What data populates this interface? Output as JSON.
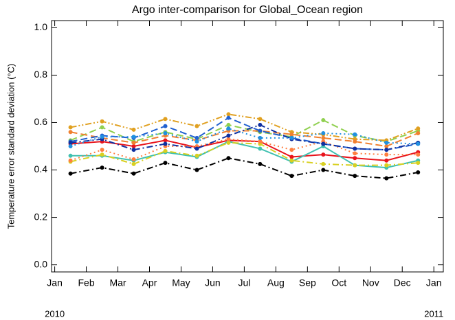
{
  "chart_data": {
    "type": "line",
    "title": "Argo inter-comparison for Global_Ocean region",
    "y_label": "Temperature error standard deviation (°C)",
    "x": [
      0.5,
      1.5,
      2.5,
      3.5,
      4.5,
      5.5,
      6.5,
      7.5,
      8.5,
      9.5,
      10.5,
      11.5
    ],
    "xlim": [
      -0.1,
      12.3
    ],
    "xticks": [
      {
        "value": 0,
        "label": "Jan"
      },
      {
        "value": 1,
        "label": "Feb"
      },
      {
        "value": 2,
        "label": "Mar"
      },
      {
        "value": 3,
        "label": "Apr"
      },
      {
        "value": 4,
        "label": "May"
      },
      {
        "value": 5,
        "label": "Jun"
      },
      {
        "value": 6,
        "label": "Jul"
      },
      {
        "value": 7,
        "label": "Aug"
      },
      {
        "value": 8,
        "label": "Sep"
      },
      {
        "value": 9,
        "label": "Oct"
      },
      {
        "value": 10,
        "label": "Nov"
      },
      {
        "value": 11,
        "label": "Dec"
      },
      {
        "value": 12,
        "label": "Jan"
      }
    ],
    "year_labels": [
      {
        "value": 0,
        "label": "2010"
      },
      {
        "value": 12,
        "label": "2011"
      }
    ],
    "ylim": [
      -0.03,
      1.03
    ],
    "yticks": [
      {
        "value": 0,
        "label": "0.0"
      },
      0.2,
      0.4,
      0.6,
      0.8,
      {
        "value": 1,
        "label": "1.0"
      }
    ],
    "series": [
      {
        "color": "#000000",
        "style": "dashdot",
        "values": [
          0.385,
          0.41,
          0.385,
          0.43,
          0.4,
          0.45,
          0.425,
          0.375,
          0.4,
          0.375,
          0.365,
          0.39
        ]
      },
      {
        "color": "#e8141c",
        "style": "solid",
        "values": [
          0.51,
          0.52,
          0.5,
          0.525,
          0.495,
          0.525,
          0.52,
          0.455,
          0.465,
          0.45,
          0.44,
          0.475
        ]
      },
      {
        "color": "#40c0b0",
        "style": "solid",
        "values": [
          0.46,
          0.46,
          0.44,
          0.475,
          0.455,
          0.52,
          0.49,
          0.435,
          0.5,
          0.42,
          0.41,
          0.44
        ]
      },
      {
        "color": "#d8d020",
        "style": "dashdot",
        "values": [
          0.435,
          0.465,
          0.425,
          0.48,
          0.46,
          0.515,
          0.51,
          0.44,
          0.425,
          0.42,
          0.42,
          0.43
        ]
      },
      {
        "color": "#ff7f40",
        "style": "dotted",
        "values": [
          0.44,
          0.485,
          0.445,
          0.5,
          0.5,
          0.53,
          0.52,
          0.485,
          0.52,
          0.47,
          0.465,
          0.465
        ]
      },
      {
        "color": "#90d050",
        "style": "dashed",
        "values": [
          0.525,
          0.58,
          0.52,
          0.56,
          0.53,
          0.59,
          0.56,
          0.54,
          0.61,
          0.545,
          0.52,
          0.565
        ]
      },
      {
        "color": "#e0a020",
        "style": "dashdotdot",
        "values": [
          0.58,
          0.605,
          0.57,
          0.615,
          0.585,
          0.635,
          0.615,
          0.56,
          0.55,
          0.53,
          0.525,
          0.575
        ]
      },
      {
        "color": "#f08030",
        "style": "dashed",
        "values": [
          0.56,
          0.535,
          0.515,
          0.545,
          0.525,
          0.565,
          0.565,
          0.55,
          0.535,
          0.52,
          0.5,
          0.555
        ]
      },
      {
        "color": "#2060d0",
        "style": "dashed",
        "values": [
          0.52,
          0.545,
          0.535,
          0.585,
          0.535,
          0.62,
          0.565,
          0.535,
          0.51,
          0.49,
          0.485,
          0.51
        ]
      },
      {
        "color": "#1030a0",
        "style": "dashdot",
        "values": [
          0.515,
          0.53,
          0.485,
          0.51,
          0.49,
          0.545,
          0.59,
          0.53,
          0.51,
          0.49,
          0.485,
          0.515
        ]
      },
      {
        "color": "#2090e0",
        "style": "dotted",
        "values": [
          0.5,
          0.54,
          0.54,
          0.555,
          0.52,
          0.575,
          0.535,
          0.535,
          0.555,
          0.55,
          0.515,
          0.51
        ]
      }
    ]
  }
}
